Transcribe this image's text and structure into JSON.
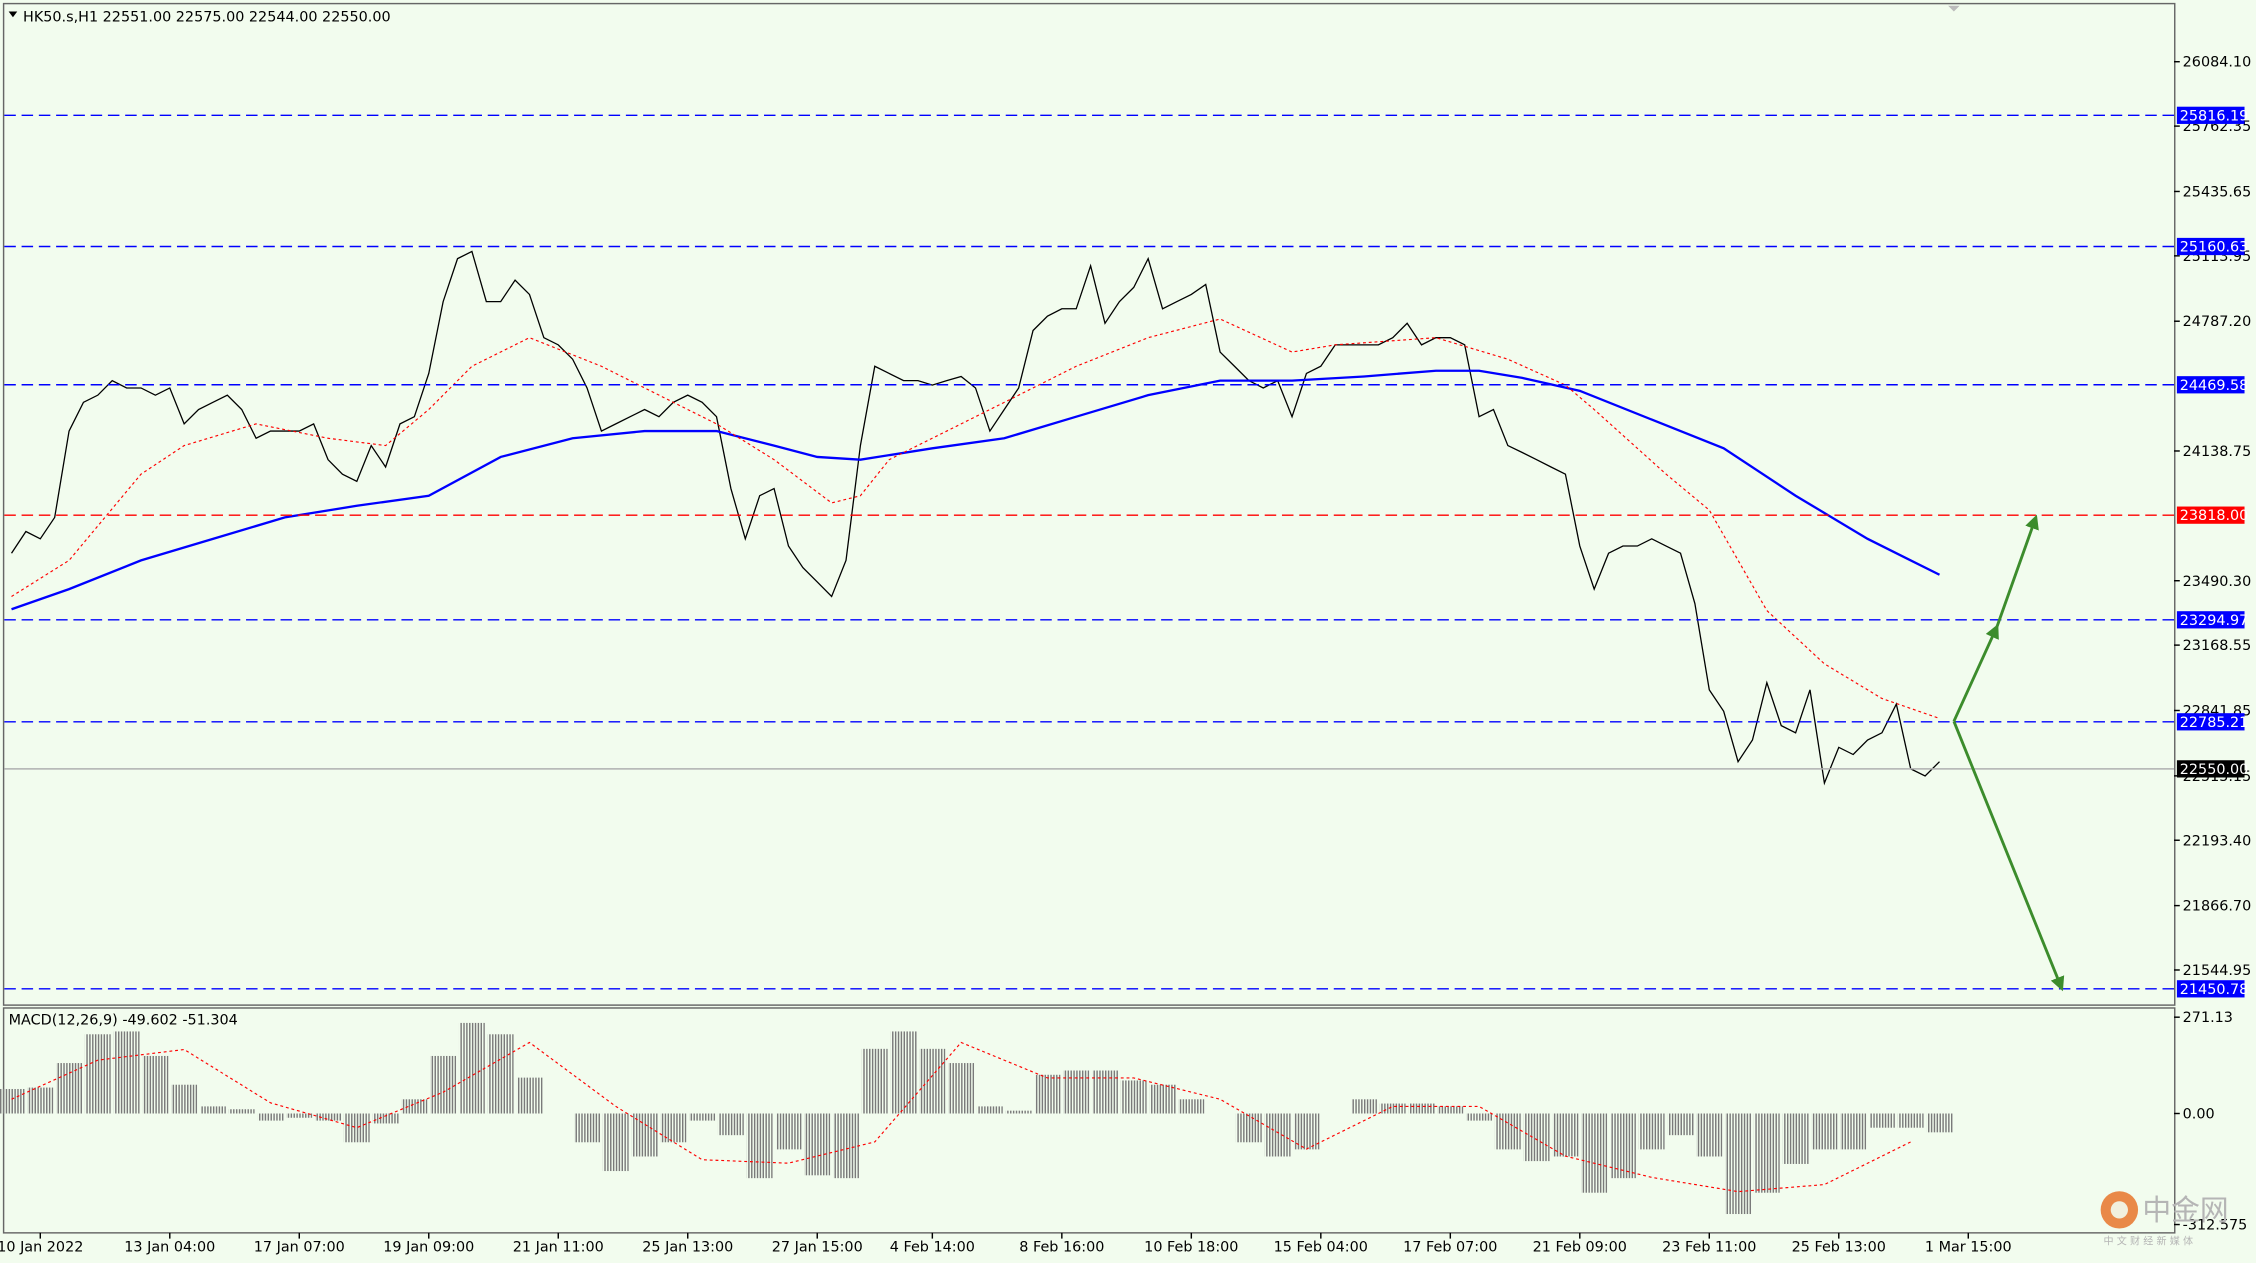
{
  "chart_data": [
    {
      "type": "line",
      "title": "HK50.s,H1  22551.00 22575.00 22544.00 22550.00",
      "categories": [
        null,
        null,
        "10 Jan 2022",
        null,
        null,
        null,
        null,
        null,
        null,
        null,
        null,
        "13 Jan 04:00",
        null,
        null,
        null,
        null,
        null,
        null,
        null,
        null,
        "17 Jan 07:00",
        null,
        null,
        null,
        null,
        null,
        null,
        null,
        null,
        "19 Jan 09:00",
        null,
        null,
        null,
        null,
        null,
        null,
        null,
        null,
        "21 Jan 11:00",
        null,
        null,
        null,
        null,
        null,
        null,
        null,
        null,
        "25 Jan 13:00",
        null,
        null,
        null,
        null,
        null,
        null,
        null,
        null,
        "27 Jan 15:00",
        null,
        null,
        null,
        null,
        null,
        null,
        null,
        "4 Feb 14:00",
        null,
        null,
        null,
        null,
        null,
        null,
        null,
        null,
        "8 Feb 16:00",
        null,
        null,
        null,
        null,
        null,
        null,
        null,
        null,
        "10 Feb 18:00",
        null,
        null,
        null,
        null,
        null,
        null,
        null,
        null,
        "15 Feb 04:00",
        null,
        null,
        null,
        null,
        null,
        null,
        null,
        null,
        "17 Feb 07:00",
        null,
        null,
        null,
        null,
        null,
        null,
        null,
        null,
        "21 Feb 09:00",
        null,
        null,
        null,
        null,
        null,
        null,
        null,
        null,
        "23 Feb 11:00",
        null,
        null,
        null,
        null,
        null,
        null,
        null,
        null,
        "25 Feb 13:00",
        null,
        null,
        null,
        null,
        null,
        null,
        null,
        null,
        "1 Mar 15:00"
      ],
      "series": [
        {
          "color": "#000000",
          "values": [
            23628,
            23736,
            23700,
            23807,
            24238,
            24382,
            24418,
            24490,
            24454,
            24454,
            24418,
            24454,
            24274,
            24346,
            24382,
            24418,
            24346,
            24202,
            24238,
            24238,
            24238,
            24274,
            24095,
            24023,
            23987,
            24166,
            24059,
            24274,
            24310,
            24526,
            24885,
            25100,
            25136,
            24885,
            24885,
            24992,
            24921,
            24705,
            24669,
            24597,
            24454,
            24238,
            24274,
            24310,
            24346,
            24310,
            24382,
            24418,
            24382,
            24310,
            23951,
            23700,
            23915,
            23951,
            23664,
            23556,
            23484,
            23412,
            23592,
            24166,
            24562,
            24526,
            24490,
            24490,
            24468,
            24490,
            24511,
            24454,
            24238,
            24346,
            24454,
            24741,
            24813,
            24849,
            24849,
            25064,
            24777,
            24885,
            24956,
            25100,
            24849,
            24885,
            24921,
            24971,
            24633,
            24562,
            24490,
            24454,
            24490,
            24310,
            24526,
            24562,
            24669,
            24669,
            24669,
            24669,
            24705,
            24777,
            24669,
            24705,
            24705,
            24669,
            24310,
            24346,
            24166,
            24131,
            24095,
            24059,
            24023,
            23664,
            23448,
            23628,
            23664,
            23664,
            23700,
            23664,
            23628,
            23376,
            22945,
            22838,
            22586,
            22694,
            22981,
            22766,
            22730,
            22945,
            22479,
            22658,
            22622,
            22694,
            22730,
            22874,
            22550,
            22515,
            22586,
            null,
            null
          ]
        },
        {
          "color": "#0000ff",
          "x": [
            0,
            4,
            9,
            14,
            19,
            24,
            29,
            34,
            39,
            44,
            49,
            53,
            56,
            59,
            64,
            69,
            74,
            79,
            84,
            89,
            94,
            99,
            102,
            105,
            109,
            114,
            119,
            124,
            129,
            134
          ],
          "values": [
            23348,
            23448,
            23592,
            23700,
            23807,
            23865,
            23915,
            24109,
            24202,
            24238,
            24238,
            24166,
            24109,
            24095,
            24152,
            24202,
            24310,
            24418,
            24490,
            24490,
            24511,
            24540,
            24540,
            24504,
            24439,
            24296,
            24152,
            23915,
            23700,
            23520
          ]
        },
        {
          "color": "#ff0000",
          "dash": true,
          "x": [
            0,
            4,
            9,
            12,
            17,
            22,
            26,
            29,
            32,
            36,
            41,
            46,
            49,
            53,
            57,
            59,
            61,
            65,
            69,
            74,
            79,
            84,
            89,
            92,
            99,
            104,
            108,
            110,
            115,
            118,
            122,
            126,
            130,
            134
          ],
          "values": [
            23412,
            23592,
            24023,
            24166,
            24274,
            24202,
            24166,
            24346,
            24562,
            24705,
            24562,
            24382,
            24274,
            24095,
            23879,
            23915,
            24095,
            24238,
            24382,
            24562,
            24705,
            24798,
            24633,
            24669,
            24705,
            24597,
            24468,
            24346,
            24023,
            23843,
            23341,
            23075,
            22902,
            22802
          ]
        }
      ],
      "ylim": [
        21373,
        26371
      ],
      "yticks": [
        {
          "value": 26084.1,
          "label": "26084.10"
        },
        25762.35,
        25435.65,
        25113.95,
        {
          "value": 24787.2,
          "label": "24787.20"
        },
        24138.75,
        {
          "value": 23490.3,
          "label": "23490.30"
        },
        23168.55,
        22841.85,
        22515.15,
        {
          "value": 22193.4,
          "label": "22193.40"
        },
        {
          "value": 21866.7,
          "label": "21866.70"
        },
        21544.95
      ],
      "levels": [
        {
          "value": 25816.19,
          "color": "#0000ff"
        },
        {
          "value": 25160.63,
          "color": "#0000ff"
        },
        {
          "value": 24469.58,
          "color": "#0000ff"
        },
        {
          "value": 23818,
          "label": "23818.00",
          "color": "#ff0000"
        },
        {
          "value": 23294.97,
          "color": "#0000ff"
        },
        {
          "value": 22785.21,
          "color": "#0000ff"
        },
        {
          "value": 21450.78,
          "color": "#0000ff"
        }
      ],
      "last": {
        "value": 22550,
        "label": "22550.00"
      }
    },
    {
      "type": "bar",
      "title": "MACD(12,26,9) -49.602 -51.304",
      "x": [
        0,
        2,
        4,
        6,
        8,
        10,
        12,
        14,
        16,
        18,
        20,
        22,
        24,
        26,
        28,
        30,
        32,
        34,
        36,
        38,
        40,
        42,
        44,
        46,
        48,
        50,
        52,
        54,
        56,
        58,
        60,
        62,
        64,
        66,
        68,
        70,
        72,
        74,
        76,
        78,
        80,
        82,
        84,
        86,
        88,
        90,
        92,
        94,
        96,
        98,
        100,
        102,
        104,
        106,
        108,
        110,
        112,
        114,
        116,
        118,
        120,
        122,
        124,
        126,
        128,
        130,
        132,
        134
      ],
      "values": [
        69,
        73,
        142,
        223,
        231,
        162,
        81,
        20,
        12,
        -20,
        -12,
        -20,
        -81,
        -28,
        40,
        162,
        255,
        223,
        101,
        0,
        -81,
        -162,
        -121,
        -81,
        -20,
        -61,
        -182,
        -101,
        -174,
        -182,
        182,
        231,
        182,
        142,
        20,
        8,
        109,
        121,
        121,
        93,
        81,
        40,
        0,
        -81,
        -121,
        -101,
        0,
        40,
        28,
        28,
        20,
        -20,
        -101,
        -134,
        -121,
        -223,
        -182,
        -101,
        -61,
        -121,
        -283,
        -223,
        -142,
        -101,
        -101,
        -40,
        -40,
        -53
      ],
      "color": "#808080",
      "signal": {
        "color": "#ff0000",
        "x": [
          0,
          6,
          12,
          18,
          24,
          30,
          36,
          42,
          48,
          54,
          60,
          66,
          72,
          78,
          84,
          90,
          96,
          102,
          108,
          114,
          120,
          126,
          132
        ],
        "values": [
          40,
          150,
          180,
          30,
          -40,
          60,
          200,
          20,
          -130,
          -140,
          -80,
          200,
          100,
          100,
          40,
          -100,
          20,
          20,
          -120,
          -180,
          -220,
          -200,
          -80
        ]
      },
      "xlim": [
        -0.5,
        150.3
      ],
      "ylim": [
        -336,
        295
      ],
      "yticks": [
        271.13,
        {
          "value": 0,
          "label": "0.00"
        },
        -312.575
      ]
    }
  ],
  "watermark": {
    "title": "中金网",
    "subtitle": "中 文 财 经 新 媒 体"
  }
}
